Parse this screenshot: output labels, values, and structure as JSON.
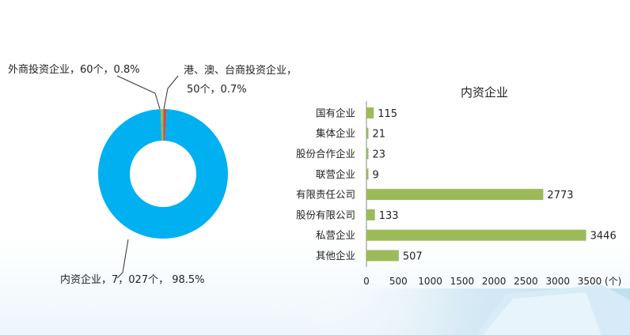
{
  "chart_data": [
    {
      "type": "pie",
      "variant": "donut",
      "slices": [
        {
          "label": "内资企业，7，027个， 98.5%",
          "name": "内资企业",
          "value": 7027,
          "percent": 98.5,
          "color": "#00b0f0"
        },
        {
          "label": "外商投资企业，60个，0.8%",
          "name": "外商投资企业",
          "value": 60,
          "percent": 0.8,
          "color": "#c0504d"
        },
        {
          "label_line1": "港、澳、台商投资企业，",
          "label_line2": "50个，0.7%",
          "name": "港、澳、台商投资企业",
          "value": 50,
          "percent": 0.7,
          "color": "#9bbb59"
        }
      ]
    },
    {
      "type": "bar",
      "orientation": "horizontal",
      "title": "内资企业",
      "categories": [
        "国有企业",
        "集体企业",
        "股份合作企业",
        "联营企业",
        "有限责任公司",
        "股份有限公司",
        "私营企业",
        "其他企业"
      ],
      "values": [
        115,
        21,
        23,
        9,
        2773,
        133,
        3446,
        507
      ],
      "value_labels": [
        "115",
        "21",
        "23",
        "9",
        "2773",
        "133",
        "3446",
        "507"
      ],
      "xlim": [
        0,
        3500
      ],
      "xticks": [
        "0",
        "500",
        "1000",
        "1500",
        "2000",
        "2500",
        "3000",
        "3500"
      ],
      "xunit": "(个)",
      "color": "#9bbb59",
      "grid": false
    }
  ]
}
